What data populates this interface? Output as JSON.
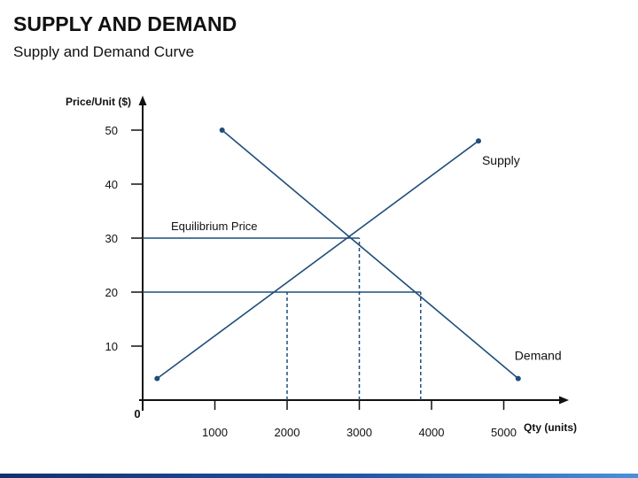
{
  "slide": {
    "title": "SUPPLY AND DEMAND",
    "subtitle": "Supply and Demand Curve"
  },
  "colors": {
    "line": "#1f4e79",
    "text": "#111111",
    "footer_start": "#13306e",
    "footer_end": "#4a90d9"
  },
  "chart_data": {
    "type": "line",
    "title": "",
    "xlabel": "Qty (units)",
    "ylabel": "Price/Unit ($)",
    "origin_label": "0",
    "xlim": [
      0,
      6000
    ],
    "ylim": [
      0,
      57
    ],
    "xticks": [
      1000,
      2000,
      3000,
      4000,
      5000
    ],
    "xtick_labels": [
      "1000",
      "2000",
      "3000",
      "4000",
      "5000"
    ],
    "yticks": [
      10,
      20,
      30,
      40,
      50
    ],
    "ytick_labels": [
      "10",
      "20",
      "30",
      "40",
      "50"
    ],
    "series": [
      {
        "name": "Supply",
        "points": [
          [
            200,
            4
          ],
          [
            4650,
            48
          ]
        ]
      },
      {
        "name": "Demand",
        "points": [
          [
            1100,
            50
          ],
          [
            5200,
            4
          ]
        ]
      }
    ],
    "equilibrium": {
      "label": "Equilibrium Price",
      "x": 3000,
      "y": 30
    },
    "guides": [
      {
        "kind": "hline",
        "y": 30,
        "x_end": 3000,
        "style": "solid"
      },
      {
        "kind": "hline",
        "y": 20,
        "x_end": 3850,
        "style": "solid"
      },
      {
        "kind": "vline",
        "x": 2000,
        "y_end": 20,
        "style": "dashed"
      },
      {
        "kind": "vline",
        "x": 3000,
        "y_end": 30,
        "style": "dashed"
      },
      {
        "kind": "vline",
        "x": 3850,
        "y_end": 20,
        "style": "dashed"
      }
    ],
    "grid": false,
    "legend": "none"
  }
}
